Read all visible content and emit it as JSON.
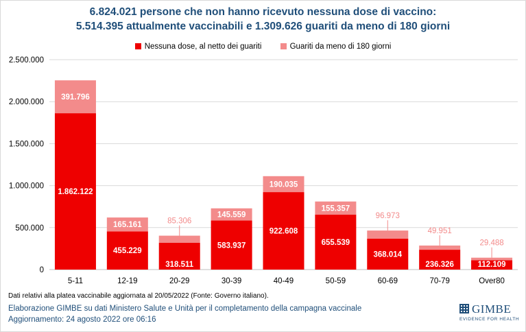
{
  "title_line1": "6.824.021 persone che non hanno ricevuto nessuna dose di vaccino:",
  "title_line2": "5.514.395 attualmente vaccinabili e 1.309.626 guariti da meno di 180 giorni",
  "note": "Dati relativi alla platea vaccinabile aggiornata al 20/05/2022 (Fonte: Governo italiano).",
  "footer_line1": "Elaborazione GIMBE su dati Ministero Salute e Unità per il completamento della campagna vaccinale",
  "footer_line2": "Aggiornamento: 24 agosto 2022 ore 06:16",
  "logo": {
    "name": "GIMBE",
    "tagline": "EVIDENCE FOR HEALTH",
    "icon": "gimbe-grid-icon"
  },
  "colors": {
    "dark": "#ee0000",
    "light": "#f38b8b",
    "title": "#1f4e79",
    "grid": "#d9d9d9"
  },
  "chart_data": {
    "type": "bar",
    "stacked": true,
    "categories": [
      "5-11",
      "12-19",
      "20-29",
      "30-39",
      "40-49",
      "50-59",
      "60-69",
      "70-79",
      "Over80"
    ],
    "series": [
      {
        "name": "Nessuna dose, al netto dei guariti",
        "color": "#ee0000",
        "values": [
          1862122,
          455229,
          318511,
          583937,
          922608,
          655539,
          368014,
          236326,
          112109
        ]
      },
      {
        "name": "Guariti da meno di 180 giorni",
        "color": "#f38b8b",
        "values": [
          391796,
          165161,
          85306,
          145559,
          190035,
          155357,
          96973,
          49951,
          29488
        ]
      }
    ],
    "ylim": [
      0,
      2500000
    ],
    "yticks": [
      0,
      500000,
      1000000,
      1500000,
      2000000,
      2500000
    ],
    "ytick_labels": [
      "0",
      "500.000",
      "1.000.000",
      "1.500.000",
      "2.000.000",
      "2.500.000"
    ],
    "data_labels": [
      [
        "1.862.122",
        "455.229",
        "318.511",
        "583.937",
        "922.608",
        "655.539",
        "368.014",
        "236.326",
        "112.109"
      ],
      [
        "391.796",
        "165.161",
        "85.306",
        "145.559",
        "190.035",
        "155.357",
        "96.973",
        "49.951",
        "29.488"
      ]
    ],
    "legend": "top-center",
    "grid": true
  }
}
